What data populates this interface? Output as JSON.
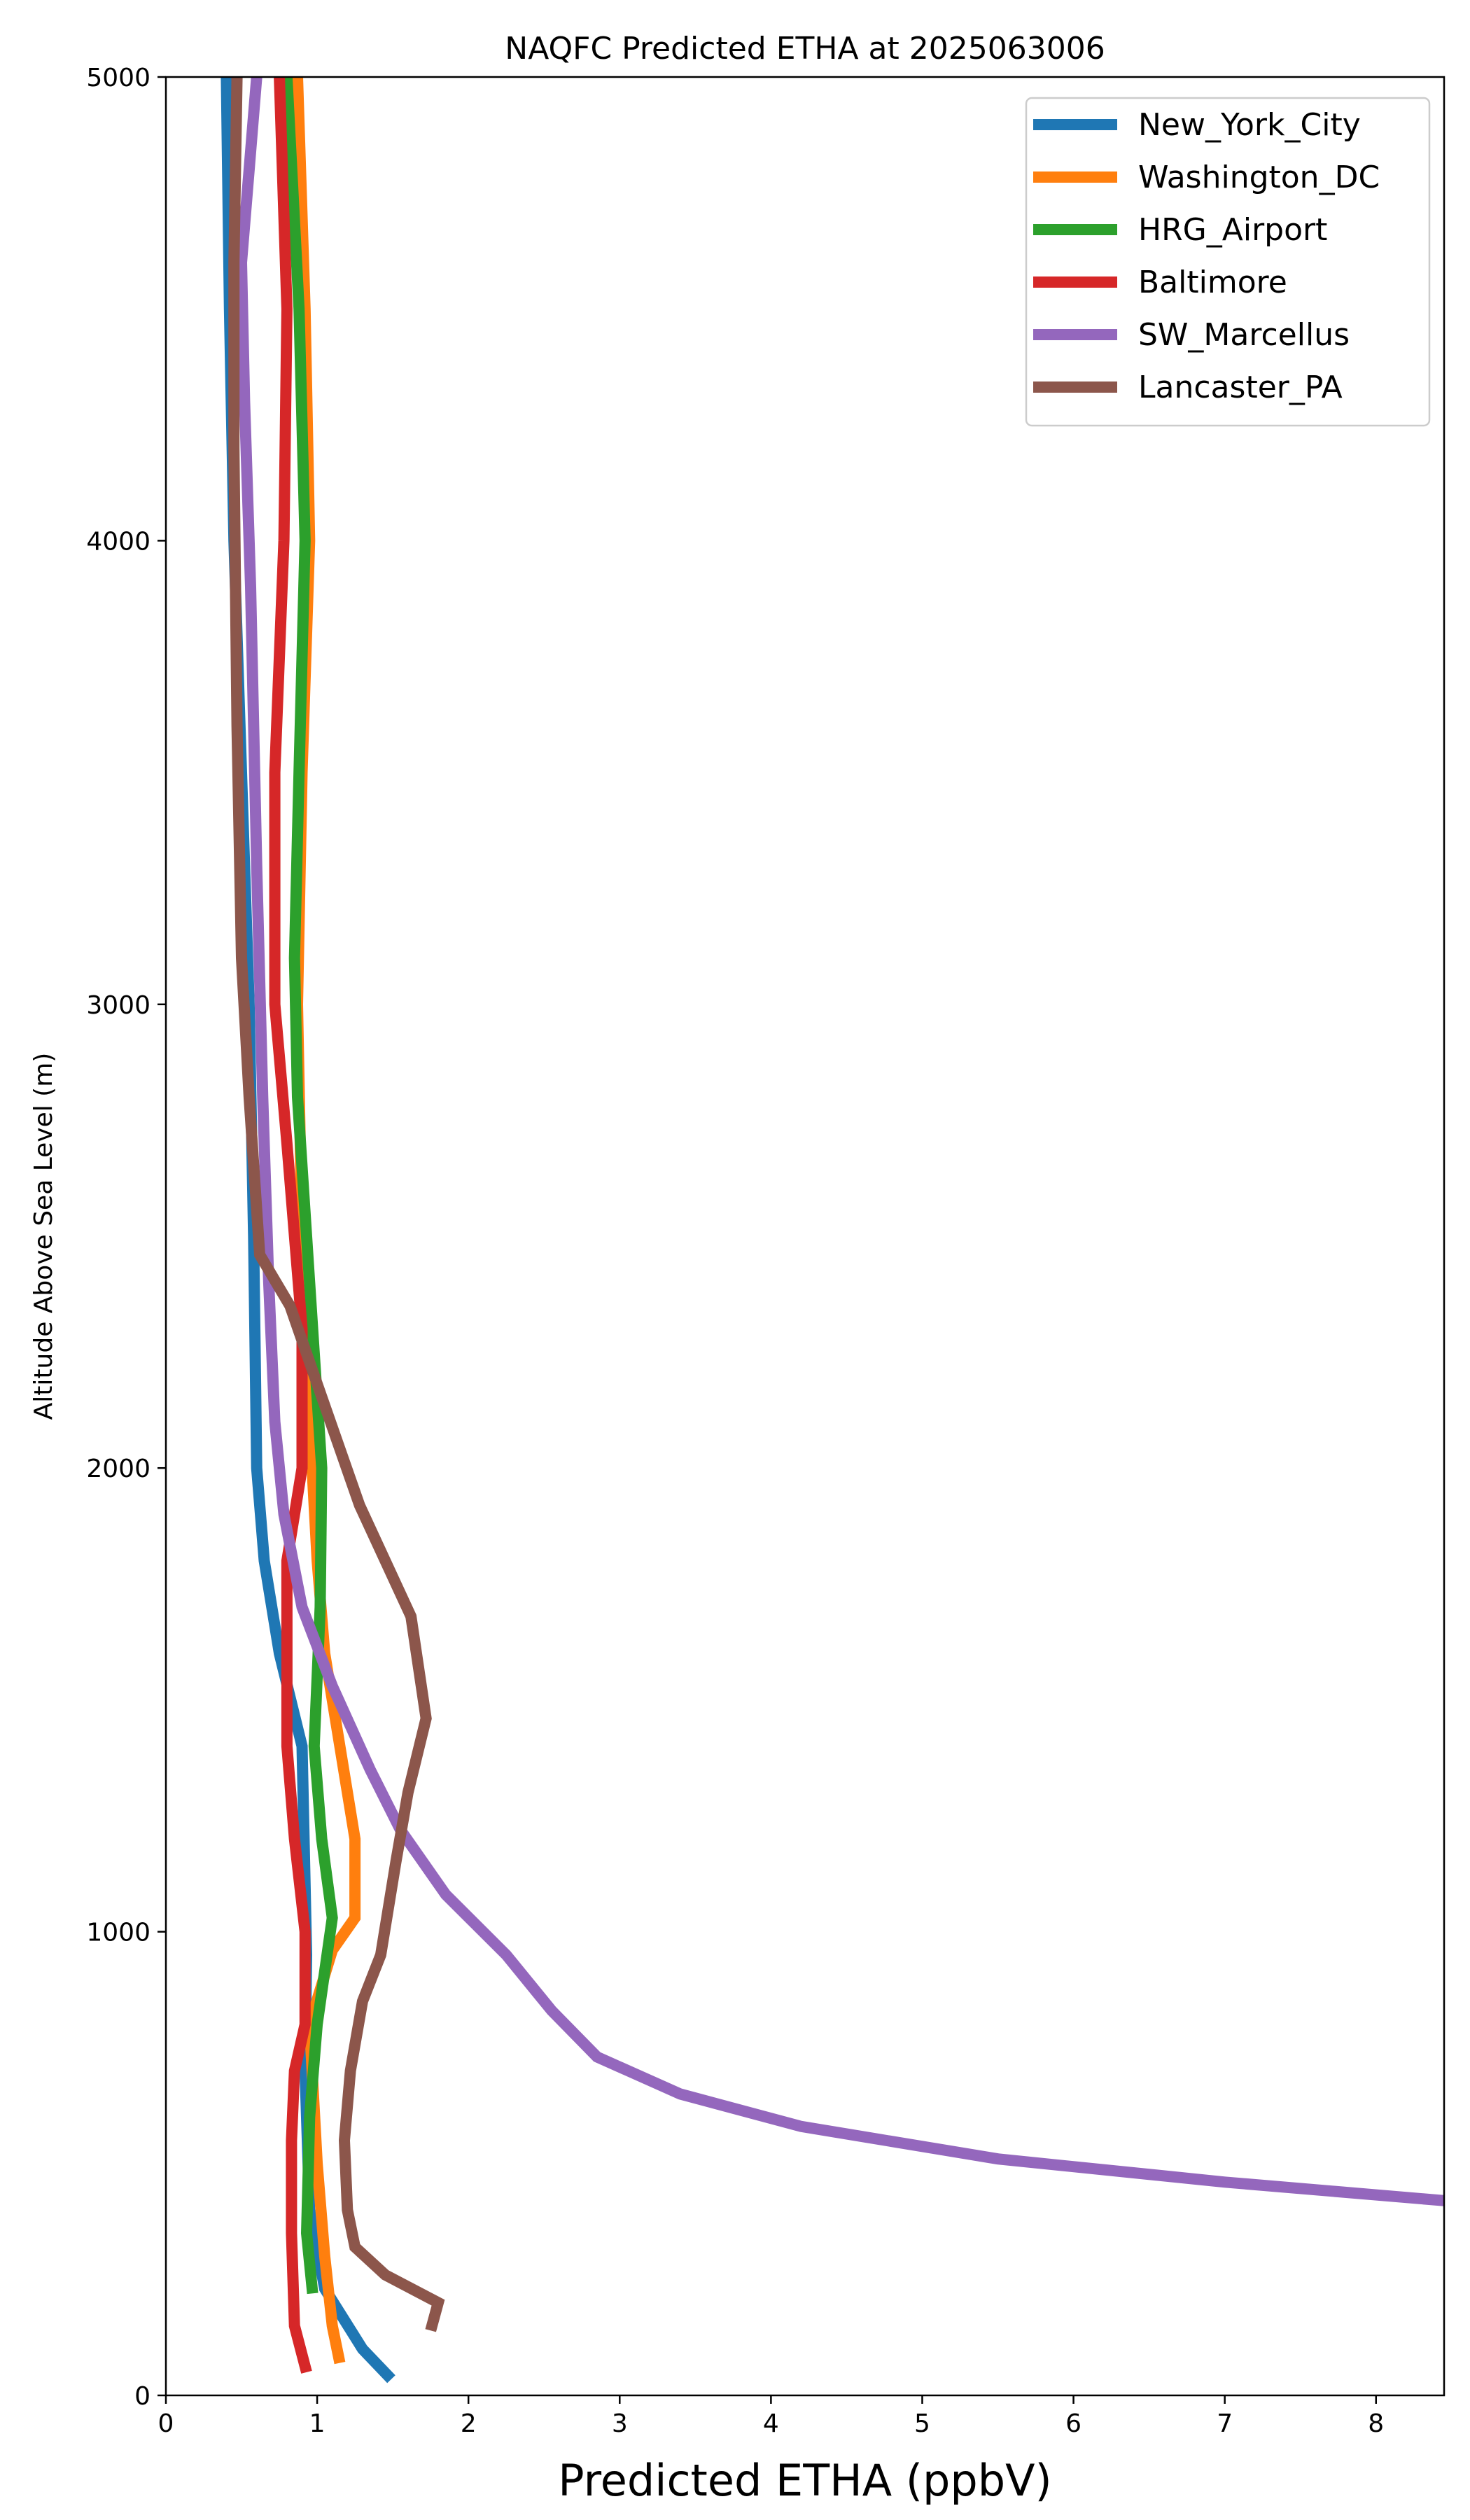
{
  "chart_data": {
    "type": "line",
    "title": "NAQFC Predicted ETHA at 2025063006",
    "xlabel": "Predicted ETHA (ppbV)",
    "ylabel": "Altitude Above Sea Level (m)",
    "xlim": [
      0,
      8.45
    ],
    "ylim": [
      0,
      5000
    ],
    "x_ticks": [
      "0",
      "1",
      "2",
      "3",
      "4",
      "5",
      "6",
      "7",
      "8"
    ],
    "y_ticks": [
      "0",
      "1000",
      "2000",
      "3000",
      "4000",
      "5000"
    ],
    "grid": false,
    "legend_position": "top-right",
    "series": [
      {
        "name": "New_York_City",
        "color": "#1f77b4",
        "points": [
          [
            1.49,
            35
          ],
          [
            1.3,
            100
          ],
          [
            1.05,
            230
          ],
          [
            0.95,
            400
          ],
          [
            0.92,
            700
          ],
          [
            0.93,
            950
          ],
          [
            0.9,
            1400
          ],
          [
            0.75,
            1600
          ],
          [
            0.65,
            1800
          ],
          [
            0.6,
            2000
          ],
          [
            0.58,
            2500
          ],
          [
            0.55,
            3000
          ],
          [
            0.5,
            3500
          ],
          [
            0.45,
            4000
          ],
          [
            0.42,
            4500
          ],
          [
            0.4,
            5000
          ]
        ]
      },
      {
        "name": "Washington_DC",
        "color": "#ff7f0e",
        "points": [
          [
            1.15,
            70
          ],
          [
            1.1,
            150
          ],
          [
            1.05,
            300
          ],
          [
            1.0,
            500
          ],
          [
            0.95,
            800
          ],
          [
            1.1,
            960
          ],
          [
            1.25,
            1030
          ],
          [
            1.25,
            1200
          ],
          [
            1.15,
            1400
          ],
          [
            1.05,
            1600
          ],
          [
            1.0,
            1800
          ],
          [
            0.95,
            2100
          ],
          [
            0.9,
            2500
          ],
          [
            0.87,
            3000
          ],
          [
            0.9,
            3500
          ],
          [
            0.95,
            4000
          ],
          [
            0.92,
            4500
          ],
          [
            0.87,
            5000
          ]
        ]
      },
      {
        "name": "HRG_Airport",
        "color": "#2ca02c",
        "points": [
          [
            0.97,
            220
          ],
          [
            0.93,
            350
          ],
          [
            0.95,
            600
          ],
          [
            1.0,
            800
          ],
          [
            1.1,
            1030
          ],
          [
            1.03,
            1200
          ],
          [
            0.98,
            1400
          ],
          [
            1.02,
            1700
          ],
          [
            1.03,
            2000
          ],
          [
            0.95,
            2400
          ],
          [
            0.87,
            2800
          ],
          [
            0.85,
            3100
          ],
          [
            0.88,
            3500
          ],
          [
            0.92,
            4000
          ],
          [
            0.88,
            4500
          ],
          [
            0.8,
            5000
          ]
        ]
      },
      {
        "name": "Baltimore",
        "color": "#d62728",
        "points": [
          [
            0.93,
            50
          ],
          [
            0.85,
            150
          ],
          [
            0.83,
            350
          ],
          [
            0.83,
            550
          ],
          [
            0.85,
            700
          ],
          [
            0.92,
            800
          ],
          [
            0.92,
            1000
          ],
          [
            0.85,
            1200
          ],
          [
            0.8,
            1400
          ],
          [
            0.8,
            1600
          ],
          [
            0.8,
            1800
          ],
          [
            0.9,
            2000
          ],
          [
            0.9,
            2300
          ],
          [
            0.8,
            2700
          ],
          [
            0.72,
            3000
          ],
          [
            0.72,
            3500
          ],
          [
            0.78,
            4000
          ],
          [
            0.8,
            4500
          ],
          [
            0.75,
            5000
          ]
        ]
      },
      {
        "name": "SW_Marcellus",
        "color": "#9467bd",
        "points": [
          [
            8.45,
            420
          ],
          [
            7.0,
            460
          ],
          [
            5.5,
            510
          ],
          [
            4.2,
            580
          ],
          [
            3.4,
            650
          ],
          [
            2.85,
            730
          ],
          [
            2.55,
            830
          ],
          [
            2.25,
            950
          ],
          [
            1.85,
            1080
          ],
          [
            1.55,
            1220
          ],
          [
            1.35,
            1350
          ],
          [
            1.1,
            1530
          ],
          [
            0.9,
            1700
          ],
          [
            0.78,
            1900
          ],
          [
            0.72,
            2100
          ],
          [
            0.68,
            2400
          ],
          [
            0.64,
            2800
          ],
          [
            0.6,
            3300
          ],
          [
            0.56,
            3900
          ],
          [
            0.52,
            4300
          ],
          [
            0.5,
            4600
          ],
          [
            0.55,
            4800
          ],
          [
            0.6,
            5000
          ]
        ]
      },
      {
        "name": "Lancaster_PA",
        "color": "#8c564b",
        "points": [
          [
            1.75,
            140
          ],
          [
            1.8,
            200
          ],
          [
            1.45,
            260
          ],
          [
            1.25,
            320
          ],
          [
            1.2,
            400
          ],
          [
            1.18,
            550
          ],
          [
            1.22,
            700
          ],
          [
            1.3,
            850
          ],
          [
            1.42,
            950
          ],
          [
            1.52,
            1150
          ],
          [
            1.6,
            1300
          ],
          [
            1.72,
            1460
          ],
          [
            1.62,
            1680
          ],
          [
            1.28,
            1920
          ],
          [
            0.98,
            2200
          ],
          [
            0.82,
            2350
          ],
          [
            0.62,
            2460
          ],
          [
            0.55,
            2800
          ],
          [
            0.5,
            3100
          ],
          [
            0.47,
            3600
          ],
          [
            0.45,
            4200
          ],
          [
            0.45,
            4600
          ],
          [
            0.47,
            5000
          ]
        ]
      }
    ]
  }
}
